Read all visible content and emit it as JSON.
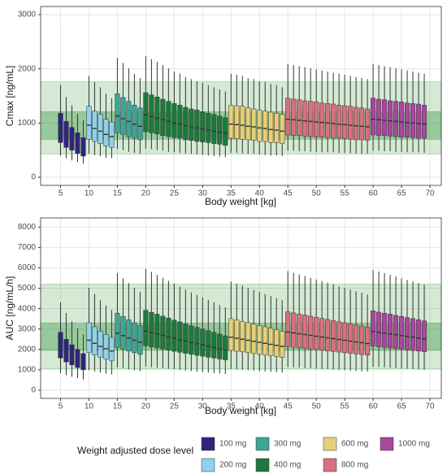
{
  "legend": {
    "title": "Weight adjusted dose level",
    "names": [
      "100 mg",
      "200 mg",
      "300 mg",
      "400 mg",
      "600 mg",
      "800 mg",
      "1000 mg"
    ],
    "colors": [
      "#2f2480",
      "#8fd0ee",
      "#3fa596",
      "#1c7a3c",
      "#e6cf78",
      "#d9707f",
      "#a9479e"
    ]
  },
  "chart_data": [
    {
      "type": "box",
      "y_label": "Cmax [ng/mL]",
      "x_label": "Body weight [kg]",
      "xlim": [
        1.5,
        72
      ],
      "ylim": [
        -150,
        3150
      ],
      "xticks": [
        5,
        10,
        15,
        20,
        25,
        30,
        35,
        40,
        45,
        50,
        55,
        60,
        65,
        70
      ],
      "yticks": [
        0,
        1000,
        2000,
        3000
      ],
      "grid": true,
      "bands": [
        [
          430,
          1760
        ],
        [
          700,
          1210
        ]
      ],
      "series": [
        {
          "x": [
            5,
            6,
            7,
            8,
            9
          ],
          "low": [
            400,
            350,
            310,
            280,
            250
          ],
          "q1": [
            640,
            550,
            500,
            440,
            390
          ],
          "median": [
            870,
            760,
            680,
            600,
            540
          ],
          "q3": [
            1180,
            1030,
            920,
            820,
            730
          ],
          "high": [
            1700,
            1480,
            1330,
            1170,
            1050
          ]
        },
        {
          "x": [
            10,
            11,
            12,
            13,
            14
          ],
          "low": [
            440,
            410,
            390,
            360,
            350
          ],
          "q1": [
            700,
            660,
            620,
            580,
            550
          ],
          "median": [
            960,
            900,
            850,
            790,
            750
          ],
          "q3": [
            1310,
            1220,
            1160,
            1070,
            1020
          ],
          "high": [
            1870,
            1760,
            1660,
            1540,
            1460
          ]
        },
        {
          "x": [
            15,
            16,
            17,
            18,
            19
          ],
          "low": [
            520,
            500,
            470,
            450,
            430
          ],
          "q1": [
            820,
            790,
            750,
            720,
            690
          ],
          "median": [
            1130,
            1080,
            1030,
            980,
            940
          ],
          "q3": [
            1540,
            1470,
            1400,
            1330,
            1280
          ],
          "high": [
            2200,
            2110,
            2010,
            1910,
            1830
          ]
        },
        {
          "x": [
            20,
            21,
            22,
            23,
            24,
            25,
            26,
            27,
            28,
            29,
            30,
            31,
            32,
            33,
            34
          ],
          "low": [
            530,
            520,
            500,
            490,
            470,
            460,
            450,
            440,
            430,
            420,
            410,
            400,
            390,
            380,
            370
          ],
          "q1": [
            840,
            820,
            800,
            770,
            750,
            730,
            720,
            690,
            680,
            660,
            650,
            640,
            620,
            610,
            590
          ],
          "median": [
            1150,
            1120,
            1090,
            1060,
            1030,
            1000,
            980,
            950,
            930,
            910,
            890,
            870,
            850,
            830,
            810
          ],
          "q3": [
            1560,
            1520,
            1480,
            1440,
            1400,
            1360,
            1330,
            1290,
            1260,
            1240,
            1210,
            1180,
            1160,
            1130,
            1100
          ],
          "high": [
            2240,
            2180,
            2130,
            2070,
            2010,
            1950,
            1910,
            1850,
            1810,
            1770,
            1740,
            1700,
            1660,
            1620,
            1580
          ]
        },
        {
          "x": [
            35,
            36,
            37,
            38,
            39,
            40,
            41,
            42,
            43,
            44
          ],
          "low": [
            450,
            450,
            440,
            430,
            430,
            420,
            410,
            400,
            400,
            390
          ],
          "q1": [
            720,
            710,
            700,
            690,
            680,
            660,
            660,
            640,
            640,
            620
          ],
          "median": [
            980,
            970,
            960,
            940,
            930,
            910,
            900,
            880,
            870,
            850
          ],
          "q3": [
            1330,
            1320,
            1310,
            1280,
            1260,
            1240,
            1220,
            1200,
            1180,
            1160
          ],
          "high": [
            1910,
            1890,
            1870,
            1830,
            1810,
            1770,
            1760,
            1720,
            1700,
            1660
          ]
        },
        {
          "x": [
            45,
            46,
            47,
            48,
            49,
            50,
            51,
            52,
            53,
            54,
            55,
            56,
            57,
            58,
            59
          ],
          "low": [
            490,
            490,
            480,
            480,
            470,
            470,
            460,
            460,
            460,
            450,
            450,
            440,
            440,
            430,
            430
          ],
          "q1": [
            780,
            770,
            770,
            760,
            750,
            740,
            740,
            730,
            720,
            720,
            710,
            700,
            690,
            690,
            680
          ],
          "median": [
            1070,
            1060,
            1050,
            1040,
            1030,
            1020,
            1010,
            1000,
            990,
            980,
            970,
            960,
            950,
            940,
            930
          ],
          "q3": [
            1460,
            1440,
            1430,
            1410,
            1400,
            1390,
            1370,
            1360,
            1350,
            1330,
            1320,
            1310,
            1290,
            1280,
            1260
          ],
          "high": [
            2090,
            2070,
            2050,
            2030,
            2010,
            1990,
            1970,
            1950,
            1930,
            1910,
            1890,
            1870,
            1850,
            1830,
            1810
          ]
        },
        {
          "x": [
            60,
            61,
            62,
            63,
            64,
            65,
            66,
            67,
            68,
            69
          ],
          "low": [
            490,
            490,
            480,
            480,
            470,
            470,
            460,
            460,
            460,
            450
          ],
          "q1": [
            780,
            770,
            770,
            760,
            750,
            740,
            740,
            730,
            720,
            720
          ],
          "median": [
            1070,
            1060,
            1050,
            1040,
            1030,
            1020,
            1010,
            1000,
            990,
            980
          ],
          "q3": [
            1460,
            1440,
            1430,
            1410,
            1400,
            1390,
            1370,
            1360,
            1350,
            1330
          ],
          "high": [
            2090,
            2070,
            2050,
            2030,
            2010,
            1990,
            1970,
            1950,
            1930,
            1910
          ]
        }
      ]
    },
    {
      "type": "box",
      "y_label": "AUC [ng/mL/h]",
      "x_label": "Body weight [kg]",
      "xlim": [
        1.5,
        72
      ],
      "ylim": [
        -400,
        8450
      ],
      "xticks": [
        5,
        10,
        15,
        20,
        25,
        30,
        35,
        40,
        45,
        50,
        55,
        60,
        65,
        70
      ],
      "yticks": [
        0,
        1000,
        2000,
        3000,
        4000,
        5000,
        6000,
        7000,
        8000
      ],
      "grid": true,
      "bands": [
        [
          1050,
          5200
        ],
        [
          1950,
          3300
        ]
      ],
      "series": [
        {
          "x": [
            5,
            6,
            7,
            8,
            9
          ],
          "low": [
            840,
            740,
            660,
            590,
            530
          ],
          "q1": [
            1580,
            1390,
            1240,
            1110,
            1000
          ],
          "median": [
            2100,
            1850,
            1650,
            1480,
            1330
          ],
          "q3": [
            2840,
            2500,
            2230,
            2000,
            1800
          ],
          "high": [
            4310,
            3790,
            3380,
            3030,
            2730
          ]
        },
        {
          "x": [
            10,
            11,
            12,
            13,
            14
          ],
          "low": [
            980,
            920,
            860,
            810,
            770
          ],
          "q1": [
            1840,
            1730,
            1610,
            1520,
            1440
          ],
          "median": [
            2450,
            2300,
            2150,
            2030,
            1920
          ],
          "q3": [
            3310,
            3110,
            2900,
            2740,
            2590
          ],
          "high": [
            5020,
            4720,
            4410,
            4160,
            3940
          ]
        },
        {
          "x": [
            15,
            16,
            17,
            18,
            19
          ],
          "low": [
            1120,
            1070,
            1020,
            980,
            940
          ],
          "q1": [
            2100,
            2010,
            1920,
            1840,
            1760
          ],
          "median": [
            2800,
            2680,
            2560,
            2450,
            2350
          ],
          "q3": [
            3780,
            3620,
            3460,
            3310,
            3170
          ],
          "high": [
            5740,
            5490,
            5250,
            5020,
            4820
          ]
        },
        {
          "x": [
            20,
            21,
            22,
            23,
            24,
            25,
            26,
            27,
            28,
            29,
            30,
            31,
            32,
            33,
            34
          ],
          "low": [
            1160,
            1130,
            1100,
            1080,
            1050,
            1020,
            990,
            960,
            940,
            910,
            890,
            860,
            840,
            820,
            790
          ],
          "q1": [
            2180,
            2120,
            2070,
            2020,
            1970,
            1910,
            1860,
            1810,
            1760,
            1710,
            1670,
            1620,
            1580,
            1530,
            1490
          ],
          "median": [
            2900,
            2830,
            2760,
            2690,
            2620,
            2550,
            2480,
            2410,
            2340,
            2280,
            2220,
            2160,
            2100,
            2040,
            1980
          ],
          "q3": [
            3920,
            3820,
            3730,
            3630,
            3540,
            3440,
            3350,
            3250,
            3160,
            3080,
            3000,
            2920,
            2840,
            2750,
            2670
          ],
          "high": [
            5950,
            5800,
            5660,
            5510,
            5370,
            5230,
            5080,
            4940,
            4800,
            4670,
            4550,
            4430,
            4310,
            4180,
            4060
          ]
        },
        {
          "x": [
            35,
            36,
            37,
            38,
            39,
            40,
            41,
            42,
            43,
            44
          ],
          "low": [
            1040,
            1020,
            1000,
            980,
            960,
            940,
            920,
            900,
            880,
            860
          ],
          "q1": [
            1950,
            1910,
            1880,
            1840,
            1800,
            1760,
            1730,
            1690,
            1650,
            1610
          ],
          "median": [
            2600,
            2550,
            2500,
            2450,
            2400,
            2350,
            2300,
            2250,
            2200,
            2150
          ],
          "q3": [
            3510,
            3440,
            3380,
            3310,
            3240,
            3170,
            3110,
            3040,
            2970,
            2900
          ],
          "high": [
            5330,
            5230,
            5130,
            5020,
            4920,
            4820,
            4720,
            4610,
            4510,
            4410
          ]
        },
        {
          "x": [
            45,
            46,
            47,
            48,
            49,
            50,
            51,
            52,
            53,
            54,
            55,
            56,
            57,
            58,
            59
          ],
          "low": [
            1140,
            1120,
            1110,
            1090,
            1080,
            1060,
            1040,
            1030,
            1010,
            1000,
            980,
            960,
            950,
            930,
            920
          ],
          "q1": [
            2140,
            2110,
            2080,
            2050,
            2020,
            1990,
            1960,
            1930,
            1900,
            1870,
            1840,
            1810,
            1780,
            1750,
            1720
          ],
          "median": [
            2850,
            2810,
            2770,
            2730,
            2690,
            2650,
            2610,
            2570,
            2530,
            2490,
            2450,
            2410,
            2370,
            2330,
            2290
          ],
          "q3": [
            3850,
            3790,
            3740,
            3690,
            3630,
            3580,
            3520,
            3470,
            3420,
            3360,
            3310,
            3250,
            3200,
            3150,
            3090
          ],
          "high": [
            5840,
            5760,
            5680,
            5600,
            5510,
            5430,
            5350,
            5270,
            5190,
            5100,
            5020,
            4940,
            4860,
            4780,
            4690
          ]
        },
        {
          "x": [
            60,
            61,
            62,
            63,
            64,
            65,
            66,
            67,
            68,
            69
          ],
          "low": [
            1150,
            1140,
            1120,
            1100,
            1090,
            1070,
            1060,
            1040,
            1020,
            1010
          ],
          "q1": [
            2160,
            2130,
            2100,
            2070,
            2040,
            2010,
            1980,
            1950,
            1920,
            1890
          ],
          "median": [
            2880,
            2840,
            2800,
            2760,
            2720,
            2680,
            2640,
            2600,
            2560,
            2520
          ],
          "q3": [
            3890,
            3830,
            3780,
            3730,
            3670,
            3620,
            3560,
            3510,
            3460,
            3400
          ],
          "high": [
            5900,
            5820,
            5740,
            5660,
            5580,
            5490,
            5410,
            5330,
            5250,
            5170
          ]
        }
      ]
    }
  ]
}
